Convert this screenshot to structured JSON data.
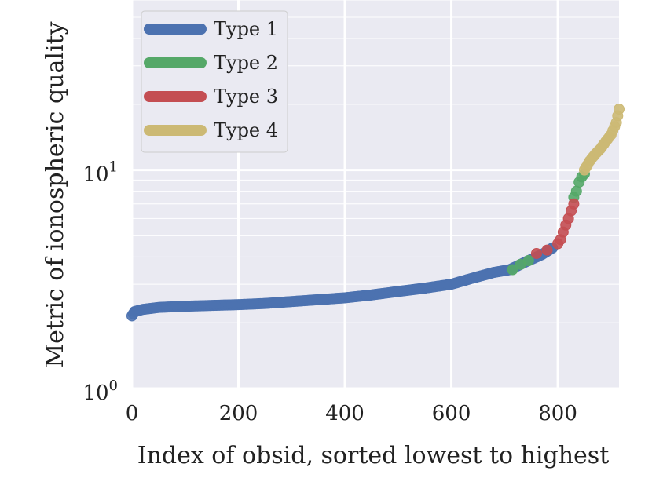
{
  "chart_data": {
    "type": "scatter",
    "title": "",
    "xlabel": "Index of obsid, sorted lowest to highest",
    "ylabel": "Metric of ionospheric quality",
    "xlim": [
      0,
      915
    ],
    "ylim": [
      1,
      60
    ],
    "yscale": "log",
    "x_ticks": [
      0,
      200,
      400,
      600,
      800
    ],
    "x_tick_labels": [
      "0",
      "200",
      "400",
      "600",
      "800"
    ],
    "y_ticks": [
      {
        "value": 1,
        "base": "10",
        "exp": "0"
      },
      {
        "value": 10,
        "base": "10",
        "exp": "1"
      }
    ],
    "grid": true,
    "legend_position": "upper-left",
    "colors": {
      "Type 1": "#4c72b0",
      "Type 2": "#55a868",
      "Type 3": "#c44e52",
      "Type 4": "#ccb974"
    },
    "series": [
      {
        "name": "Type 1",
        "points": [
          [
            0,
            2.15
          ],
          [
            5,
            2.25
          ],
          [
            20,
            2.3
          ],
          [
            50,
            2.35
          ],
          [
            100,
            2.38
          ],
          [
            150,
            2.4
          ],
          [
            200,
            2.42
          ],
          [
            250,
            2.45
          ],
          [
            300,
            2.5
          ],
          [
            350,
            2.55
          ],
          [
            400,
            2.6
          ],
          [
            450,
            2.68
          ],
          [
            500,
            2.78
          ],
          [
            550,
            2.88
          ],
          [
            600,
            3.0
          ],
          [
            640,
            3.2
          ],
          [
            680,
            3.4
          ],
          [
            710,
            3.5
          ],
          [
            740,
            3.8
          ],
          [
            770,
            4.1
          ],
          [
            790,
            4.4
          ]
        ]
      },
      {
        "name": "Type 2",
        "points": [
          [
            715,
            3.5
          ],
          [
            730,
            3.7
          ],
          [
            745,
            3.85
          ],
          [
            830,
            7.5
          ],
          [
            835,
            8.0
          ],
          [
            840,
            8.8
          ],
          [
            845,
            9.3
          ],
          [
            850,
            9.6
          ]
        ]
      },
      {
        "name": "Type 3",
        "points": [
          [
            760,
            4.15
          ],
          [
            780,
            4.3
          ],
          [
            800,
            4.6
          ],
          [
            805,
            4.8
          ],
          [
            810,
            5.2
          ],
          [
            815,
            5.6
          ],
          [
            820,
            6.0
          ],
          [
            825,
            6.5
          ],
          [
            830,
            7.0
          ]
        ]
      },
      {
        "name": "Type 4",
        "points": [
          [
            850,
            10.0
          ],
          [
            860,
            11.0
          ],
          [
            870,
            11.8
          ],
          [
            880,
            12.5
          ],
          [
            890,
            13.5
          ],
          [
            900,
            14.5
          ],
          [
            910,
            16.5
          ],
          [
            915,
            19.0
          ]
        ]
      }
    ]
  }
}
